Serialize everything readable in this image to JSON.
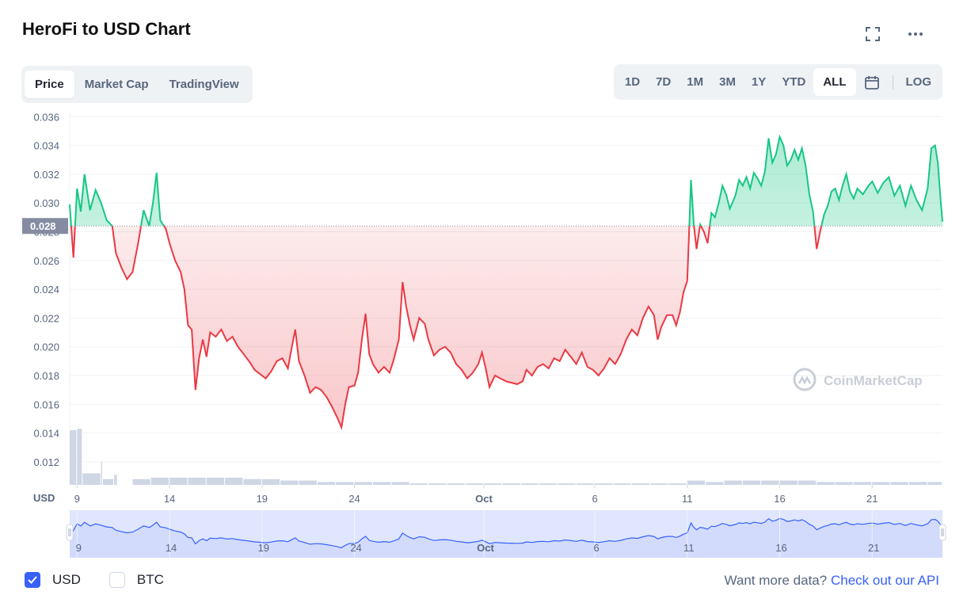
{
  "title": "HeroFi to USD Chart",
  "tabs": [
    {
      "label": "Price",
      "active": true
    },
    {
      "label": "Market Cap",
      "active": false
    },
    {
      "label": "TradingView",
      "active": false
    }
  ],
  "ranges": [
    {
      "label": "1D",
      "active": false
    },
    {
      "label": "7D",
      "active": false
    },
    {
      "label": "1M",
      "active": false
    },
    {
      "label": "3M",
      "active": false
    },
    {
      "label": "1Y",
      "active": false
    },
    {
      "label": "YTD",
      "active": false
    },
    {
      "label": "ALL",
      "active": true
    }
  ],
  "log_label": "LOG",
  "watermark": "CoinMarketCap",
  "currency_checkboxes": [
    {
      "label": "USD",
      "checked": true
    },
    {
      "label": "BTC",
      "checked": false
    }
  ],
  "footer": {
    "prompt": "Want more data?",
    "link": "Check out our API"
  },
  "colors": {
    "up": "#16c784",
    "down": "#ea3943",
    "accent": "#3861fb",
    "volume": "#cfd6e4",
    "navigator": "#dfe6fd"
  },
  "chart_data": {
    "type": "line",
    "title": "HeroFi to USD Chart",
    "y_axis_label": "USD",
    "ylim": [
      0.0104,
      0.0364
    ],
    "y_ticks": [
      "0.036",
      "0.034",
      "0.032",
      "0.030",
      "0.028",
      "0.026",
      "0.024",
      "0.022",
      "0.020",
      "0.018",
      "0.016",
      "0.014",
      "0.012"
    ],
    "baseline_value": 0.0284,
    "baseline_label": "0.028",
    "grid": true,
    "x_ticks": [
      {
        "label": "9",
        "day": 9
      },
      {
        "label": "14",
        "day": 14
      },
      {
        "label": "19",
        "day": 19
      },
      {
        "label": "24",
        "day": 24
      },
      {
        "label": "Oct",
        "day": 31
      },
      {
        "label": "6",
        "day": 37
      },
      {
        "label": "11",
        "day": 42
      },
      {
        "label": "16",
        "day": 47
      },
      {
        "label": "21",
        "day": 52
      }
    ],
    "xlim": [
      8.6,
      55.8
    ],
    "series": [
      {
        "points": [
          [
            8.6,
            0.0299
          ],
          [
            8.8,
            0.0262
          ],
          [
            9.0,
            0.031
          ],
          [
            9.2,
            0.0294
          ],
          [
            9.4,
            0.032
          ],
          [
            9.7,
            0.0295
          ],
          [
            10.0,
            0.0309
          ],
          [
            10.3,
            0.03
          ],
          [
            10.6,
            0.0288
          ],
          [
            10.9,
            0.0284
          ],
          [
            11.1,
            0.0265
          ],
          [
            11.4,
            0.0255
          ],
          [
            11.7,
            0.0247
          ],
          [
            12.0,
            0.0252
          ],
          [
            12.3,
            0.0272
          ],
          [
            12.6,
            0.0295
          ],
          [
            12.9,
            0.0284
          ],
          [
            13.1,
            0.03
          ],
          [
            13.3,
            0.0321
          ],
          [
            13.5,
            0.0288
          ],
          [
            13.8,
            0.0282
          ],
          [
            14.0,
            0.0272
          ],
          [
            14.3,
            0.026
          ],
          [
            14.6,
            0.0252
          ],
          [
            14.8,
            0.024
          ],
          [
            15.0,
            0.0215
          ],
          [
            15.2,
            0.0212
          ],
          [
            15.4,
            0.017
          ],
          [
            15.6,
            0.0192
          ],
          [
            15.8,
            0.0205
          ],
          [
            16.0,
            0.0193
          ],
          [
            16.2,
            0.021
          ],
          [
            16.5,
            0.0207
          ],
          [
            16.8,
            0.0212
          ],
          [
            17.1,
            0.0204
          ],
          [
            17.4,
            0.0207
          ],
          [
            17.7,
            0.02
          ],
          [
            18.0,
            0.0195
          ],
          [
            18.3,
            0.019
          ],
          [
            18.6,
            0.0184
          ],
          [
            18.9,
            0.0181
          ],
          [
            19.2,
            0.0178
          ],
          [
            19.5,
            0.0183
          ],
          [
            19.8,
            0.019
          ],
          [
            20.1,
            0.0192
          ],
          [
            20.4,
            0.0185
          ],
          [
            20.6,
            0.0199
          ],
          [
            20.8,
            0.0212
          ],
          [
            21.0,
            0.019
          ],
          [
            21.3,
            0.018
          ],
          [
            21.6,
            0.0168
          ],
          [
            21.9,
            0.0172
          ],
          [
            22.2,
            0.017
          ],
          [
            22.5,
            0.0165
          ],
          [
            22.8,
            0.0158
          ],
          [
            23.1,
            0.015
          ],
          [
            23.3,
            0.0144
          ],
          [
            23.5,
            0.016
          ],
          [
            23.7,
            0.0172
          ],
          [
            24.0,
            0.0173
          ],
          [
            24.2,
            0.0182
          ],
          [
            24.4,
            0.0205
          ],
          [
            24.6,
            0.0223
          ],
          [
            24.8,
            0.0195
          ],
          [
            25.0,
            0.0188
          ],
          [
            25.3,
            0.0182
          ],
          [
            25.6,
            0.0186
          ],
          [
            25.9,
            0.0182
          ],
          [
            26.1,
            0.019
          ],
          [
            26.4,
            0.0205
          ],
          [
            26.6,
            0.0245
          ],
          [
            26.8,
            0.0228
          ],
          [
            27.0,
            0.0215
          ],
          [
            27.2,
            0.0205
          ],
          [
            27.5,
            0.022
          ],
          [
            27.8,
            0.0216
          ],
          [
            28.0,
            0.0205
          ],
          [
            28.3,
            0.0194
          ],
          [
            28.6,
            0.0198
          ],
          [
            28.9,
            0.02
          ],
          [
            29.2,
            0.0196
          ],
          [
            29.5,
            0.0188
          ],
          [
            29.8,
            0.0184
          ],
          [
            30.1,
            0.0178
          ],
          [
            30.4,
            0.0182
          ],
          [
            30.7,
            0.0188
          ],
          [
            30.9,
            0.0196
          ],
          [
            31.1,
            0.0185
          ],
          [
            31.3,
            0.0172
          ],
          [
            31.6,
            0.018
          ],
          [
            31.9,
            0.0178
          ],
          [
            32.2,
            0.0176
          ],
          [
            32.5,
            0.0175
          ],
          [
            32.8,
            0.0174
          ],
          [
            33.1,
            0.0176
          ],
          [
            33.3,
            0.0184
          ],
          [
            33.6,
            0.018
          ],
          [
            33.9,
            0.0186
          ],
          [
            34.2,
            0.0188
          ],
          [
            34.5,
            0.0185
          ],
          [
            34.8,
            0.0192
          ],
          [
            35.1,
            0.019
          ],
          [
            35.4,
            0.0198
          ],
          [
            35.7,
            0.0193
          ],
          [
            36.0,
            0.0188
          ],
          [
            36.3,
            0.0196
          ],
          [
            36.6,
            0.0186
          ],
          [
            36.9,
            0.0184
          ],
          [
            37.2,
            0.018
          ],
          [
            37.5,
            0.0185
          ],
          [
            37.8,
            0.0192
          ],
          [
            38.1,
            0.0188
          ],
          [
            38.4,
            0.0195
          ],
          [
            38.7,
            0.0205
          ],
          [
            39.0,
            0.0212
          ],
          [
            39.3,
            0.0208
          ],
          [
            39.6,
            0.022
          ],
          [
            39.9,
            0.0228
          ],
          [
            40.2,
            0.0222
          ],
          [
            40.4,
            0.0205
          ],
          [
            40.6,
            0.0214
          ],
          [
            40.9,
            0.0222
          ],
          [
            41.2,
            0.0222
          ],
          [
            41.4,
            0.0215
          ],
          [
            41.6,
            0.0224
          ],
          [
            41.8,
            0.0238
          ],
          [
            42.0,
            0.0246
          ],
          [
            42.1,
            0.028
          ],
          [
            42.2,
            0.0316
          ],
          [
            42.35,
            0.0285
          ],
          [
            42.5,
            0.0268
          ],
          [
            42.7,
            0.0285
          ],
          [
            42.9,
            0.028
          ],
          [
            43.1,
            0.0272
          ],
          [
            43.3,
            0.0293
          ],
          [
            43.5,
            0.029
          ],
          [
            43.7,
            0.03
          ],
          [
            43.9,
            0.0312
          ],
          [
            44.1,
            0.0306
          ],
          [
            44.3,
            0.0296
          ],
          [
            44.6,
            0.0305
          ],
          [
            44.8,
            0.0316
          ],
          [
            45.0,
            0.0312
          ],
          [
            45.2,
            0.0318
          ],
          [
            45.4,
            0.031
          ],
          [
            45.6,
            0.0321
          ],
          [
            45.8,
            0.0317
          ],
          [
            46.0,
            0.0312
          ],
          [
            46.2,
            0.0322
          ],
          [
            46.4,
            0.0345
          ],
          [
            46.6,
            0.0328
          ],
          [
            46.8,
            0.0334
          ],
          [
            47.0,
            0.0346
          ],
          [
            47.2,
            0.034
          ],
          [
            47.4,
            0.0326
          ],
          [
            47.6,
            0.033
          ],
          [
            47.8,
            0.0337
          ],
          [
            48.0,
            0.033
          ],
          [
            48.2,
            0.0338
          ],
          [
            48.4,
            0.0326
          ],
          [
            48.6,
            0.0306
          ],
          [
            48.8,
            0.0294
          ],
          [
            49.0,
            0.0268
          ],
          [
            49.2,
            0.0281
          ],
          [
            49.4,
            0.0292
          ],
          [
            49.6,
            0.0298
          ],
          [
            49.8,
            0.0308
          ],
          [
            50.0,
            0.031
          ],
          [
            50.2,
            0.0302
          ],
          [
            50.4,
            0.0312
          ],
          [
            50.6,
            0.032
          ],
          [
            50.8,
            0.0308
          ],
          [
            51.0,
            0.0303
          ],
          [
            51.2,
            0.031
          ],
          [
            51.5,
            0.0306
          ],
          [
            51.8,
            0.0312
          ],
          [
            52.0,
            0.0315
          ],
          [
            52.3,
            0.0307
          ],
          [
            52.6,
            0.0314
          ],
          [
            52.9,
            0.0318
          ],
          [
            53.2,
            0.0305
          ],
          [
            53.5,
            0.0312
          ],
          [
            53.8,
            0.0298
          ],
          [
            54.1,
            0.0312
          ],
          [
            54.4,
            0.0302
          ],
          [
            54.7,
            0.0295
          ],
          [
            55.0,
            0.031
          ],
          [
            55.2,
            0.0338
          ],
          [
            55.4,
            0.034
          ],
          [
            55.55,
            0.0328
          ],
          [
            55.7,
            0.0302
          ],
          [
            55.8,
            0.0287
          ]
        ]
      }
    ],
    "volume": [
      [
        8.6,
        0.0142
      ],
      [
        9.0,
        0.0143
      ],
      [
        9.3,
        0.0112
      ],
      [
        10.3,
        0.012
      ],
      [
        10.4,
        0.0108
      ],
      [
        11.0,
        0.0111
      ],
      [
        11.2,
        0.0104
      ],
      [
        12.0,
        0.0108
      ],
      [
        13.0,
        0.0109
      ],
      [
        14.0,
        0.0109
      ],
      [
        15.0,
        0.0109
      ],
      [
        16.0,
        0.0109
      ],
      [
        17.0,
        0.0109
      ],
      [
        18.0,
        0.0108
      ],
      [
        19.0,
        0.0108
      ],
      [
        20.0,
        0.0107
      ],
      [
        21.0,
        0.0107
      ],
      [
        22.0,
        0.0106
      ],
      [
        23.0,
        0.0106
      ],
      [
        24.0,
        0.0106
      ],
      [
        25.0,
        0.0106
      ],
      [
        26.0,
        0.0106
      ],
      [
        27.0,
        0.0105
      ],
      [
        28.0,
        0.0105
      ],
      [
        29.0,
        0.0105
      ],
      [
        30.0,
        0.0105
      ],
      [
        31.0,
        0.0105
      ],
      [
        32.0,
        0.0105
      ],
      [
        33.0,
        0.0105
      ],
      [
        34.0,
        0.0105
      ],
      [
        35.0,
        0.0105
      ],
      [
        36.0,
        0.0105
      ],
      [
        37.0,
        0.0105
      ],
      [
        38.0,
        0.0105
      ],
      [
        39.0,
        0.0105
      ],
      [
        40.0,
        0.0105
      ],
      [
        41.0,
        0.0105
      ],
      [
        42.0,
        0.0107
      ],
      [
        43.0,
        0.0106
      ],
      [
        44.0,
        0.0107
      ],
      [
        45.0,
        0.0107
      ],
      [
        46.0,
        0.0107
      ],
      [
        47.0,
        0.0107
      ],
      [
        48.0,
        0.0107
      ],
      [
        49.0,
        0.0106
      ],
      [
        50.0,
        0.0106
      ],
      [
        51.0,
        0.0106
      ],
      [
        52.0,
        0.0106
      ],
      [
        53.0,
        0.0106
      ],
      [
        54.0,
        0.0106
      ],
      [
        55.0,
        0.0106
      ],
      [
        55.8,
        0.0107
      ]
    ]
  }
}
